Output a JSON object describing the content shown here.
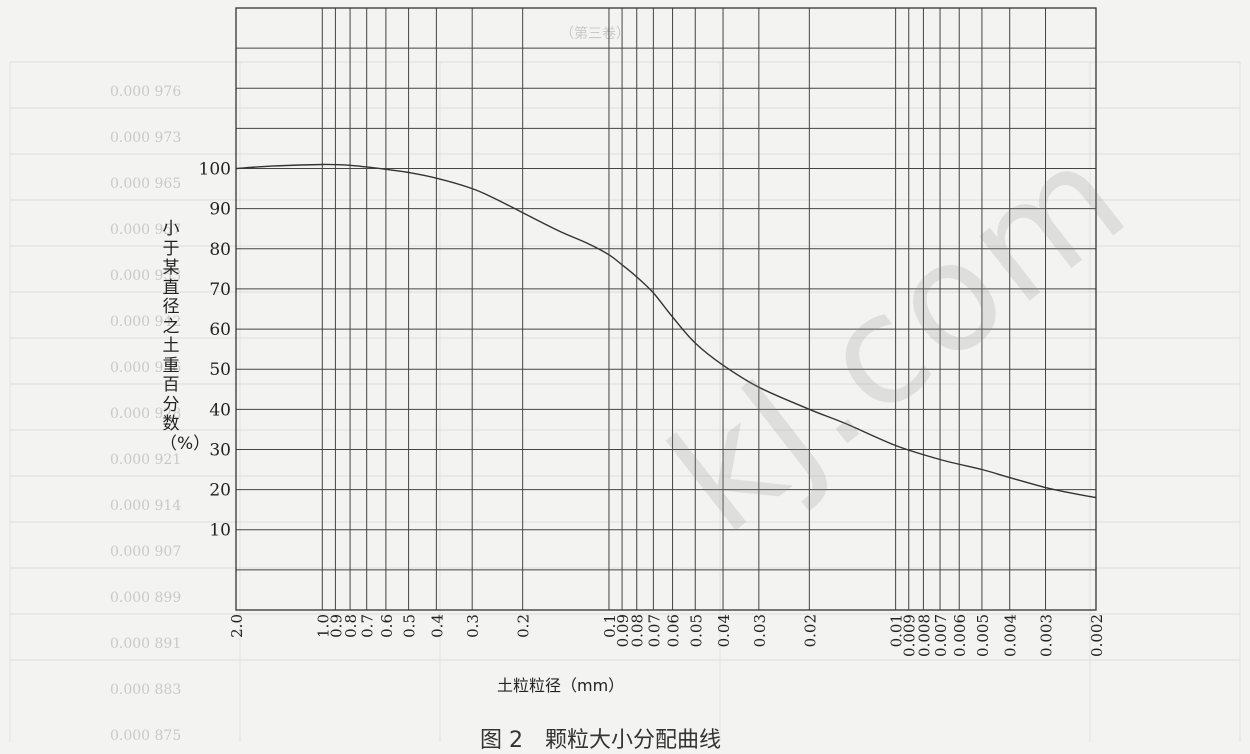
{
  "chart_data": {
    "type": "line",
    "xscale": "log",
    "xaxis_reversed": true,
    "x_tick_labels": [
      "2.0",
      "1.0",
      "0.9",
      "0.8",
      "0.7",
      "0.6",
      "0.5",
      "0.4",
      "0.3",
      "0.2",
      "0.1",
      "0.09",
      "0.08",
      "0.07",
      "0.06",
      "0.05",
      "0.04",
      "0.03",
      "0.02",
      "0.01",
      "0.009",
      "0.008",
      "0.007",
      "0.006",
      "0.005",
      "0.004",
      "0.003",
      "0.002"
    ],
    "y_ticks": [
      10,
      20,
      30,
      40,
      50,
      60,
      70,
      80,
      90,
      100
    ],
    "xlim": [
      2.0,
      0.002
    ],
    "ylim": [
      -10,
      140
    ],
    "grid": true,
    "ylabel": "小于某直径之土重百分数（%）",
    "xlabel": "土粒粒径（mm）",
    "series": [
      {
        "x": [
          2.0,
          1.5,
          1.0,
          0.8,
          0.6,
          0.5,
          0.4,
          0.3,
          0.25,
          0.2,
          0.15,
          0.12,
          0.1,
          0.09,
          0.08,
          0.07,
          0.06,
          0.05,
          0.04,
          0.03,
          0.02,
          0.015,
          0.01,
          0.007,
          0.005,
          0.004,
          0.003,
          0.0025,
          0.002
        ],
        "y": [
          100,
          100.6,
          101.0,
          100.8,
          99.8,
          99.0,
          97.6,
          95.0,
          92.5,
          89.0,
          84.5,
          81.5,
          78.5,
          76.0,
          73.0,
          69.0,
          63.0,
          56.5,
          51.0,
          45.5,
          40.0,
          36.5,
          31.0,
          27.5,
          25.0,
          23.0,
          20.5,
          19.3,
          18.0
        ]
      }
    ]
  },
  "caption": "图 2　颗粒大小分配曲线",
  "watermark": "kJ.com",
  "background_text": [
    "（第三卷）",
    "0.000 976",
    "0.000 973",
    "0.000 965",
    "0.000 957",
    "0.000 953",
    "0.000 942",
    "0.000 936",
    "0.000 928",
    "0.000 921",
    "0.000 914",
    "0.000 907",
    "0.000 899",
    "0.000 891",
    "0.000 883",
    "0.000 875"
  ]
}
